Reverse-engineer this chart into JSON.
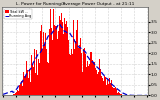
{
  "title": "L. Power for Running/Average Power Output - at 21:11",
  "legend_pv": "Total kW --",
  "legend_avg": "Running Avg",
  "bg_color": "#d4d0c8",
  "plot_bg_color": "#ffffff",
  "bar_color": "#ff0000",
  "avg_line_color": "#0000cc",
  "grid_color": "#888888",
  "title_fontsize": 4.0,
  "ylim": [
    0,
    4.2
  ],
  "num_points": 144,
  "pv_data": [
    0.0,
    0.0,
    0.0,
    0.0,
    0.0,
    0.0,
    0.0,
    0.0,
    0.0,
    0.0,
    0.05,
    0.08,
    0.12,
    0.18,
    0.25,
    0.32,
    0.42,
    0.55,
    0.65,
    0.72,
    0.8,
    0.9,
    1.0,
    1.1,
    1.2,
    1.3,
    1.38,
    1.45,
    1.52,
    1.6,
    1.68,
    1.75,
    1.82,
    1.9,
    2.0,
    2.1,
    2.18,
    2.25,
    2.32,
    2.4,
    2.48,
    2.55,
    2.62,
    2.7,
    2.78,
    2.85,
    2.9,
    2.95,
    3.0,
    3.05,
    3.1,
    3.15,
    3.2,
    3.1,
    2.8,
    3.3,
    3.5,
    3.6,
    3.8,
    3.5,
    3.2,
    3.9,
    3.7,
    2.5,
    3.6,
    3.4,
    2.8,
    2.6,
    2.4,
    2.8,
    2.6,
    2.4,
    2.5,
    2.3,
    2.6,
    2.4,
    2.2,
    2.3,
    2.1,
    2.0,
    1.9,
    1.85,
    1.8,
    1.75,
    1.7,
    1.65,
    1.6,
    1.55,
    1.5,
    1.45,
    1.4,
    1.35,
    1.3,
    1.25,
    1.2,
    1.15,
    1.1,
    1.05,
    1.0,
    0.95,
    0.9,
    0.85,
    0.8,
    0.75,
    0.7,
    0.65,
    0.6,
    0.55,
    0.5,
    0.45,
    0.4,
    0.35,
    0.3,
    0.25,
    0.2,
    0.15,
    0.1,
    0.08,
    0.05,
    0.03,
    0.02,
    0.01,
    0.0,
    0.0,
    0.0,
    0.0,
    0.0,
    0.0,
    0.0,
    0.0,
    0.0,
    0.0,
    0.0,
    0.0,
    0.0,
    0.0,
    0.0,
    0.0,
    0.0,
    0.0,
    0.0,
    0.0,
    0.0,
    0.0
  ]
}
